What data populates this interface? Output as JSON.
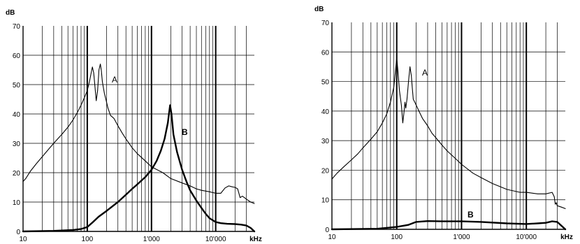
{
  "chart_data": [
    {
      "type": "line",
      "xscale": "log",
      "xlim": [
        10,
        40000
      ],
      "ylim": [
        0,
        70
      ],
      "grid": true,
      "ylabel": "dB",
      "xlabel": "kHz",
      "yticks": [
        "0",
        "10",
        "20",
        "30",
        "40",
        "50",
        "60",
        "70"
      ],
      "xticks": [
        "10",
        "100",
        "1'000",
        "10'000"
      ],
      "series": [
        {
          "name": "A",
          "x": [
            10,
            11,
            13,
            16,
            20,
            25,
            30,
            40,
            50,
            60,
            70,
            80,
            90,
            100,
            108,
            115,
            120,
            126,
            132,
            138,
            145,
            152,
            160,
            165,
            172,
            178,
            185,
            195,
            210,
            230,
            260,
            300,
            350,
            400,
            500,
            600,
            800,
            1000,
            1500,
            2000,
            3000,
            4000,
            5000,
            6000,
            8000,
            10000,
            12000,
            14000,
            16000,
            18000,
            20000,
            22000,
            24000,
            26000,
            28000,
            30000,
            35000,
            40000
          ],
          "y": [
            17,
            18,
            20.5,
            23,
            25.5,
            28,
            30,
            33,
            35.5,
            38,
            40.5,
            43,
            45.5,
            48,
            51,
            54,
            56,
            54,
            49,
            44.5,
            48,
            55,
            57,
            55,
            51,
            49,
            47,
            45,
            42,
            39.5,
            38.5,
            36,
            33.5,
            31.5,
            28.5,
            26.5,
            24,
            22,
            20,
            18,
            16.5,
            15.5,
            14.5,
            14,
            13.5,
            13,
            13,
            14.8,
            15.5,
            15.2,
            15,
            14.5,
            11.5,
            12,
            11.5,
            11,
            10,
            9.5
          ]
        },
        {
          "name": "B",
          "x": [
            10,
            30,
            60,
            80,
            100,
            120,
            150,
            200,
            300,
            400,
            500,
            600,
            800,
            1000,
            1200,
            1400,
            1600,
            1800,
            1950,
            2050,
            2200,
            2500,
            3000,
            3500,
            4000,
            5000,
            6000,
            7000,
            8000,
            10000,
            12000,
            15000,
            20000,
            25000,
            30000,
            35000,
            40000
          ],
          "y": [
            0,
            0.2,
            0.5,
            0.8,
            1.5,
            3,
            5,
            7,
            10,
            12.5,
            14.5,
            16,
            18.5,
            21,
            24,
            27.5,
            31.5,
            37,
            43,
            40,
            33,
            27,
            21,
            17,
            14,
            10.5,
            8,
            6,
            4.5,
            3.2,
            2.8,
            2.6,
            2.5,
            2.3,
            2,
            1.2,
            0
          ]
        }
      ]
    },
    {
      "type": "line",
      "xscale": "log",
      "xlim": [
        10,
        40000
      ],
      "ylim": [
        0,
        70
      ],
      "grid": true,
      "ylabel": "dB",
      "xlabel": "kHz",
      "yticks": [
        "0",
        "10",
        "20",
        "30",
        "40",
        "50",
        "60",
        "70"
      ],
      "xticks": [
        "10",
        "100",
        "1'000",
        "10'000"
      ],
      "series": [
        {
          "name": "A",
          "x": [
            10,
            12,
            15,
            20,
            25,
            30,
            40,
            50,
            60,
            70,
            80,
            90,
            95,
            100,
            104,
            110,
            118,
            124,
            130,
            134,
            138,
            144,
            152,
            160,
            168,
            175,
            180,
            190,
            200,
            220,
            250,
            300,
            350,
            400,
            500,
            600,
            800,
            1000,
            1500,
            2000,
            3000,
            5000,
            8000,
            10000,
            15000,
            20000,
            25000,
            27000,
            28000,
            29000,
            30000,
            35000,
            40000
          ],
          "y": [
            17,
            19,
            21,
            23.5,
            25.5,
            27.5,
            30.5,
            33,
            36,
            39,
            43,
            48,
            53,
            58,
            54,
            47,
            42,
            36,
            40,
            43,
            41,
            44,
            50,
            55,
            52,
            47,
            44,
            43,
            42,
            40,
            37.5,
            35,
            32.5,
            31,
            28.5,
            26.5,
            24,
            22,
            19,
            17.5,
            15.5,
            13.5,
            12.5,
            12.5,
            12,
            12,
            12.5,
            11,
            8.5,
            9,
            8,
            7.5,
            7
          ]
        },
        {
          "name": "B",
          "x": [
            10,
            50,
            100,
            150,
            200,
            300,
            500,
            800,
            1000,
            2000,
            5000,
            10000,
            15000,
            20000,
            25000,
            30000,
            40000
          ],
          "y": [
            0,
            0.2,
            0.8,
            1.5,
            2.5,
            2.8,
            2.7,
            2.7,
            2.7,
            2.5,
            2,
            1.8,
            2,
            2.2,
            2.7,
            2.5,
            0
          ]
        }
      ]
    }
  ]
}
